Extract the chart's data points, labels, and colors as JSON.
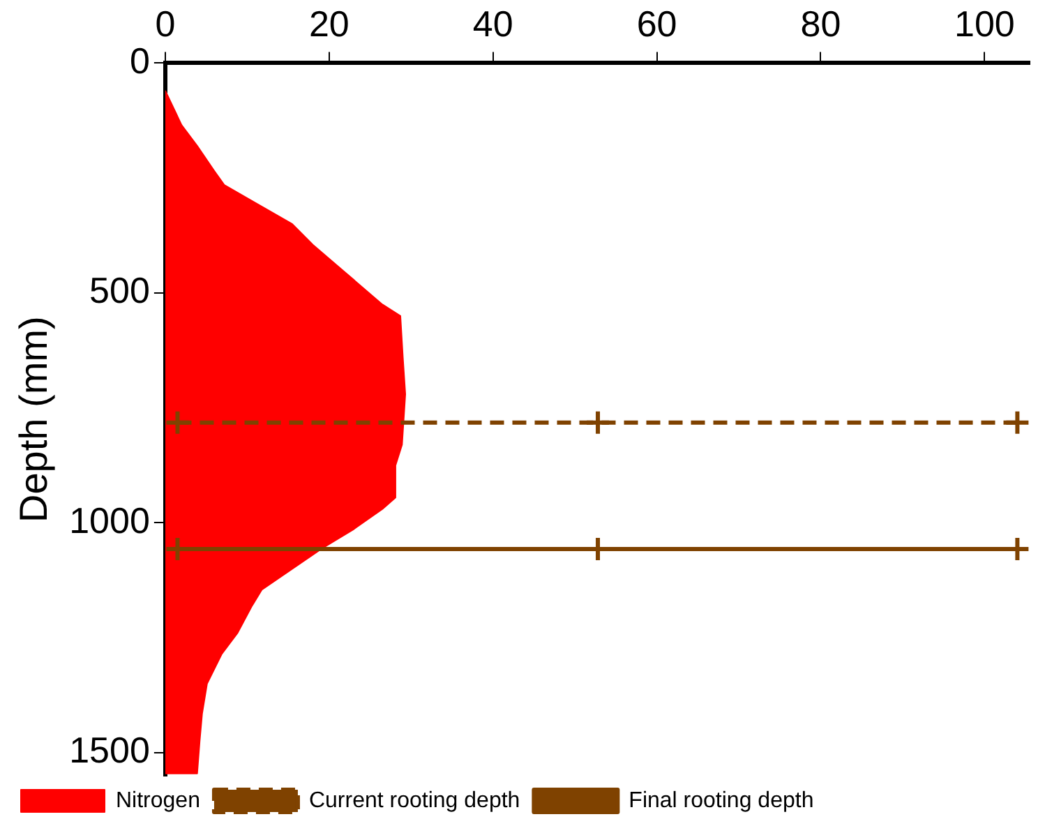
{
  "chart_data": {
    "type": "area",
    "ylabel": "Depth (mm)",
    "legend": "bottom",
    "xlim": [
      0,
      105.5
    ],
    "xticks": [
      0,
      20,
      40,
      60,
      80,
      100
    ],
    "ylim": [
      1550,
      0
    ],
    "yticks": [
      0,
      500,
      1000,
      1500
    ],
    "series": [
      {
        "name": "Nitrogen",
        "type": "area",
        "color": "#ff0000",
        "x": [
          0,
          2.0,
          3.9,
          6.0,
          7.2,
          10.6,
          15.5,
          18.0,
          21.6,
          26.5,
          28.7,
          29.0,
          29.3,
          28.9,
          28.1,
          28.1,
          26.5,
          22.9,
          19.2,
          15.5,
          11.8,
          10.6,
          8.8,
          6.9,
          5.1,
          4.5,
          4.2,
          3.9,
          0
        ],
        "values": [
          60,
          135,
          180,
          235,
          265,
          300,
          350,
          395,
          450,
          525,
          550,
          640,
          720,
          830,
          875,
          945,
          970,
          1015,
          1055,
          1100,
          1145,
          1180,
          1240,
          1285,
          1350,
          1415,
          1475,
          1545,
          1545
        ]
      },
      {
        "name": "Current rooting depth",
        "type": "line",
        "color": "#7f4200",
        "line_style": "dashed",
        "marker": "cross",
        "x": [
          1.5,
          52.8,
          104
        ],
        "values": [
          782,
          782,
          782
        ]
      },
      {
        "name": "Final rooting depth",
        "type": "line",
        "color": "#7f4200",
        "line_style": "solid",
        "marker": "cross",
        "x": [
          1.5,
          52.8,
          104
        ],
        "values": [
          1057,
          1057,
          1057
        ]
      }
    ]
  }
}
